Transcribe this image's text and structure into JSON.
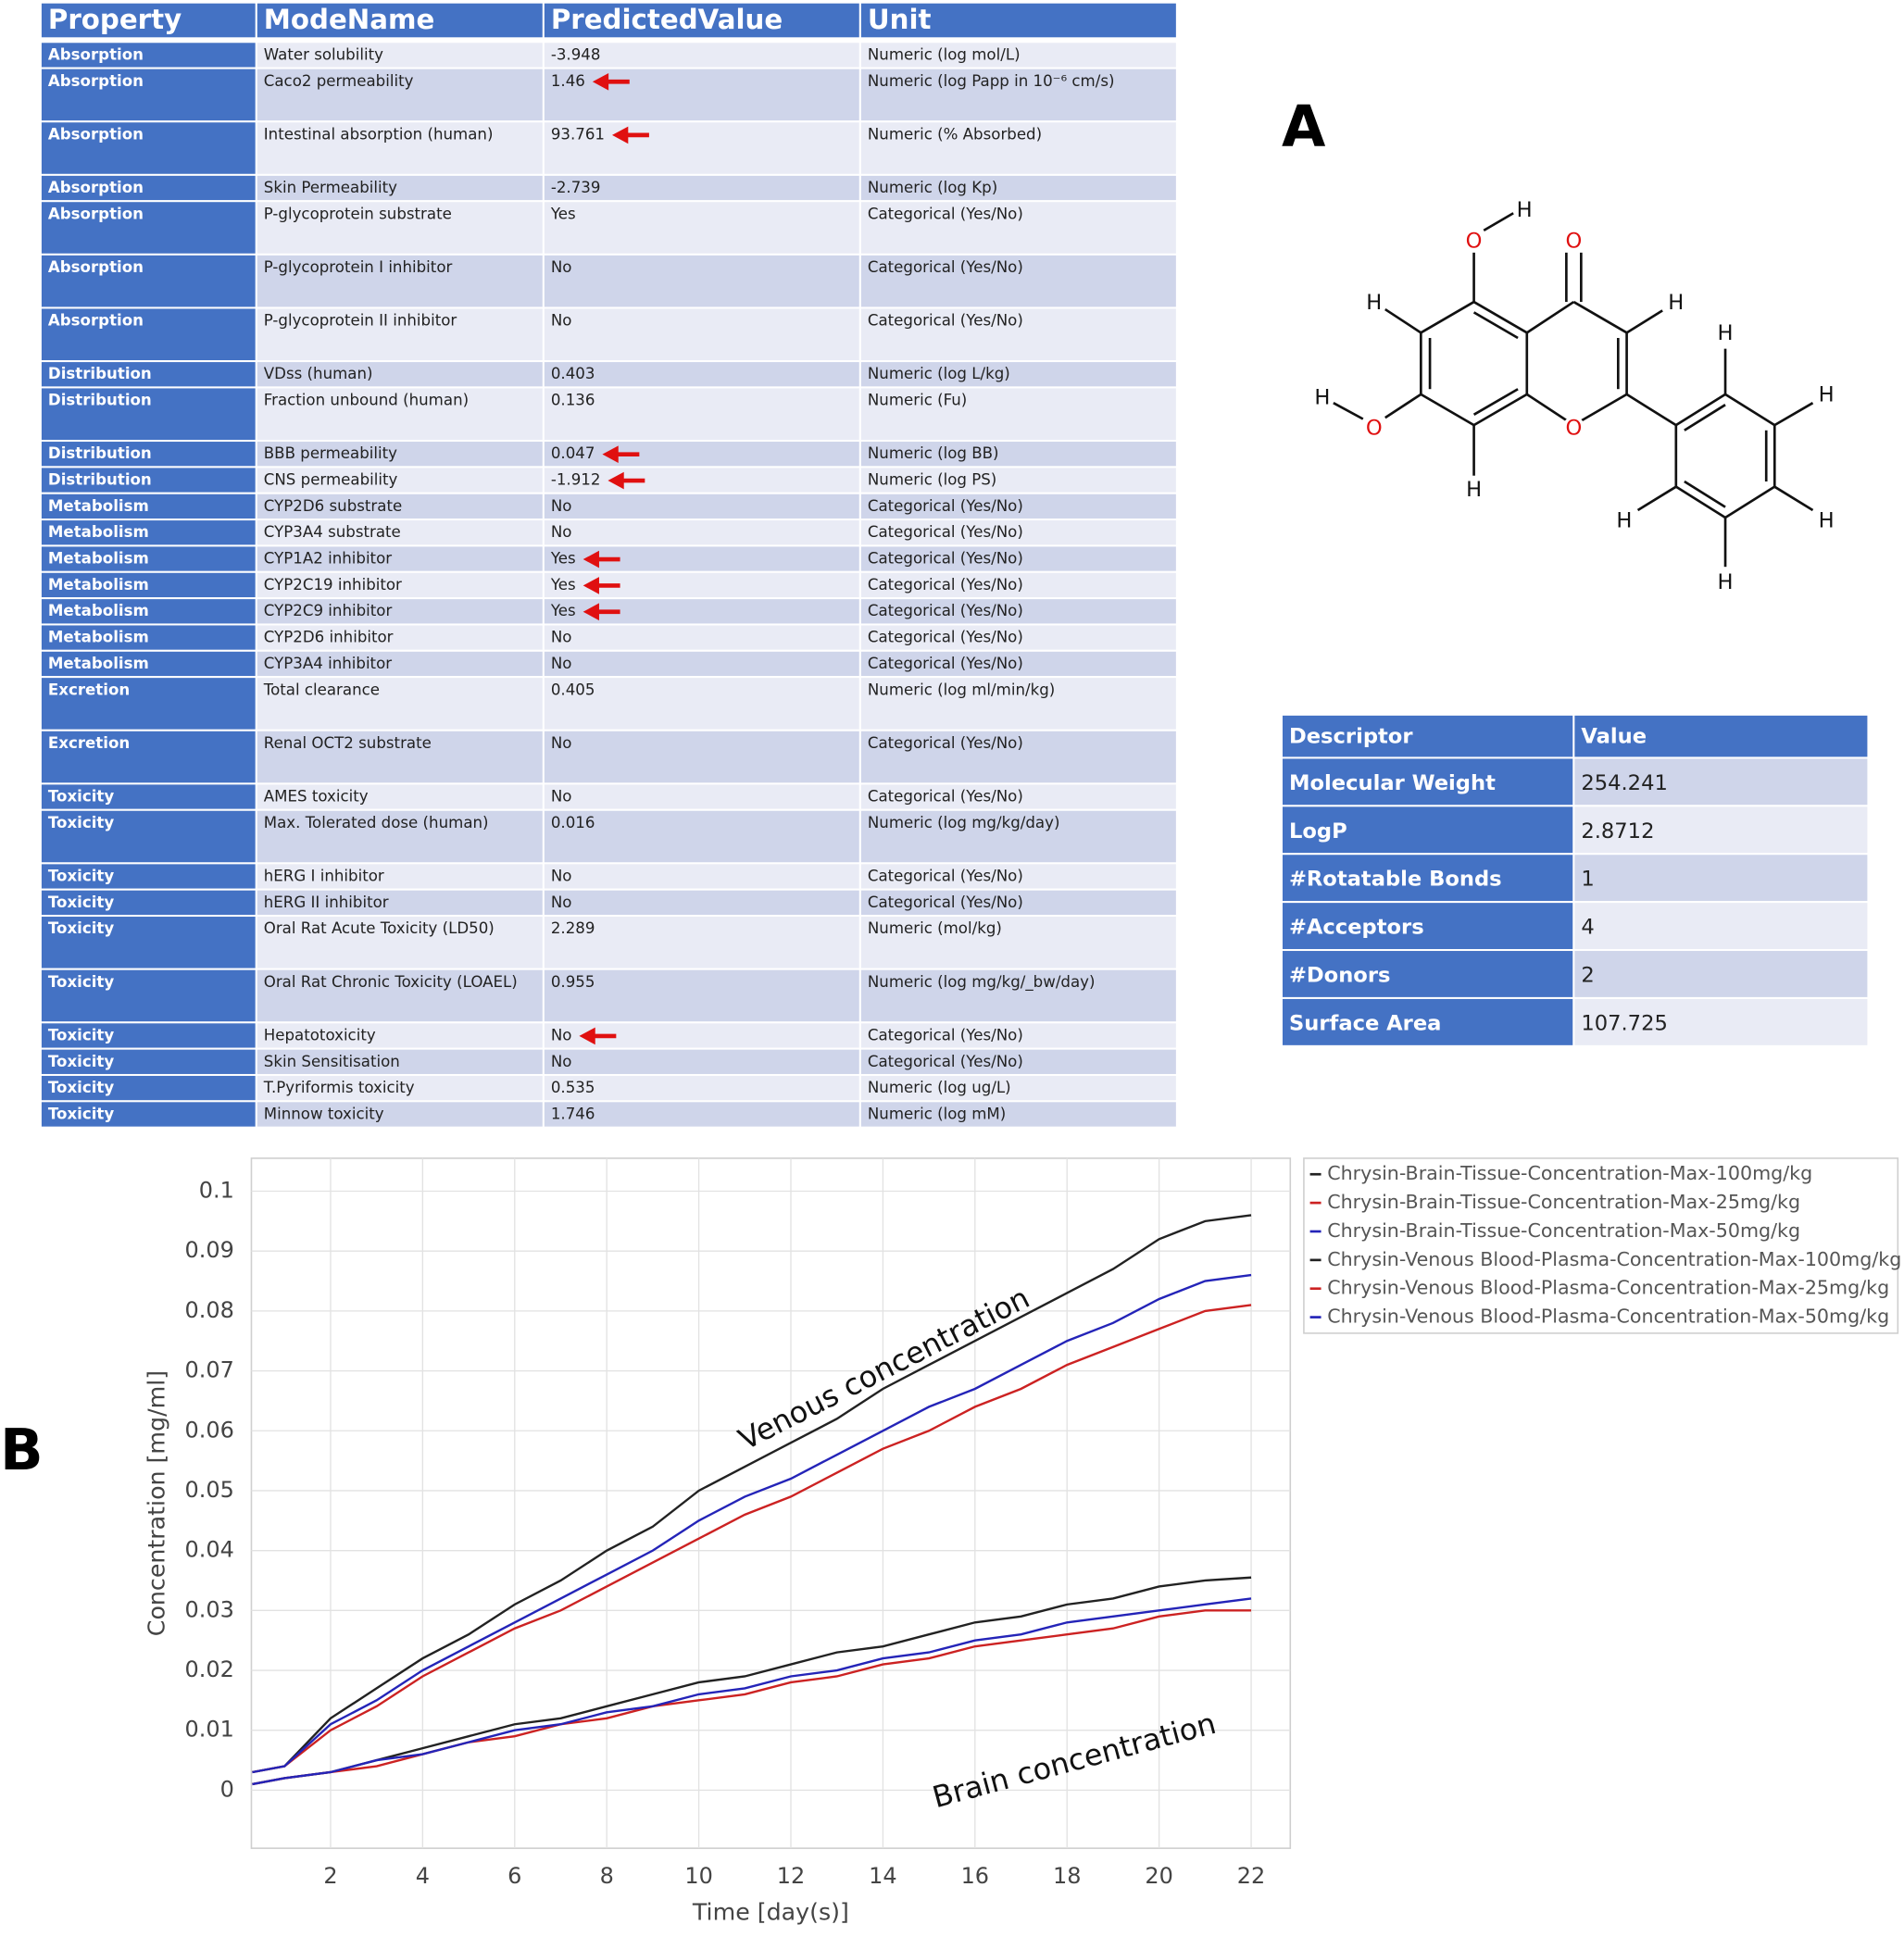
{
  "panel_labels": [
    "A",
    "B"
  ],
  "admet_table": {
    "columns": [
      "Property",
      "ModeName",
      "PredictedValue",
      "Unit"
    ],
    "rows": [
      [
        "Absorption",
        "Water solubility",
        "-3.948",
        "Numeric (log mol/L)"
      ],
      [
        "Absorption",
        "Caco2 permeability",
        "1.46",
        "Numeric (log Papp in 10⁻⁶ cm/s)"
      ],
      [
        "Absorption",
        "Intestinal absorption (human)",
        "93.761",
        "Numeric (% Absorbed)"
      ],
      [
        "Absorption",
        "Skin Permeability",
        "-2.739",
        "Numeric (log Kp)"
      ],
      [
        "Absorption",
        "P-glycoprotein substrate",
        "Yes",
        "Categorical (Yes/No)"
      ],
      [
        "Absorption",
        "P-glycoprotein I inhibitor",
        "No",
        "Categorical (Yes/No)"
      ],
      [
        "Absorption",
        "P-glycoprotein II inhibitor",
        "No",
        "Categorical (Yes/No)"
      ],
      [
        "Distribution",
        "VDss (human)",
        "0.403",
        "Numeric (log L/kg)"
      ],
      [
        "Distribution",
        "Fraction unbound (human)",
        "0.136",
        "Numeric (Fu)"
      ],
      [
        "Distribution",
        "BBB permeability",
        "0.047",
        "Numeric (log BB)"
      ],
      [
        "Distribution",
        "CNS permeability",
        "-1.912",
        "Numeric (log PS)"
      ],
      [
        "Metabolism",
        "CYP2D6 substrate",
        "No",
        "Categorical (Yes/No)"
      ],
      [
        "Metabolism",
        "CYP3A4 substrate",
        "No",
        "Categorical (Yes/No)"
      ],
      [
        "Metabolism",
        "CYP1A2 inhibitor",
        "Yes",
        "Categorical (Yes/No)"
      ],
      [
        "Metabolism",
        "CYP2C19 inhibitor",
        "Yes",
        "Categorical (Yes/No)"
      ],
      [
        "Metabolism",
        "CYP2C9 inhibitor",
        "Yes",
        "Categorical (Yes/No)"
      ],
      [
        "Metabolism",
        "CYP2D6 inhibitor",
        "No",
        "Categorical (Yes/No)"
      ],
      [
        "Metabolism",
        "CYP3A4 inhibitor",
        "No",
        "Categorical (Yes/No)"
      ],
      [
        "Excretion",
        "Total clearance",
        "0.405",
        "Numeric (log ml/min/kg)"
      ],
      [
        "Excretion",
        "Renal OCT2 substrate",
        "No",
        "Categorical (Yes/No)"
      ],
      [
        "Toxicity",
        "AMES toxicity",
        "No",
        "Categorical (Yes/No)"
      ],
      [
        "Toxicity",
        "Max. Tolerated dose (human)",
        "0.016",
        "Numeric (log mg/kg/day)"
      ],
      [
        "Toxicity",
        "hERG I inhibitor",
        "No",
        "Categorical (Yes/No)"
      ],
      [
        "Toxicity",
        "hERG II inhibitor",
        "No",
        "Categorical (Yes/No)"
      ],
      [
        "Toxicity",
        "Oral Rat Acute Toxicity (LD50)",
        "2.289",
        "Numeric (mol/kg)"
      ],
      [
        "Toxicity",
        "Oral Rat Chronic Toxicity (LOAEL)",
        "0.955",
        "Numeric (log mg/kg/_bw/day)"
      ],
      [
        "Toxicity",
        "Hepatotoxicity",
        "No",
        "Categorical (Yes/No)"
      ],
      [
        "Toxicity",
        "Skin Sensitisation",
        "No",
        "Categorical (Yes/No)"
      ],
      [
        "Toxicity",
        "T.Pyriformis toxicity",
        "0.535",
        "Numeric (log ug/L)"
      ],
      [
        "Toxicity",
        "Minnow toxicity",
        "1.746",
        "Numeric (log mM)"
      ]
    ]
  },
  "molecule": {
    "atoms": [
      "O",
      "H",
      "O",
      "H",
      "H",
      "O",
      "H",
      "O",
      "H",
      "H",
      "H",
      "H",
      "H",
      "H"
    ]
  },
  "descriptor_table": {
    "columns": [
      "Descriptor",
      "Value"
    ],
    "rows": [
      [
        "Molecular Weight",
        "254.241"
      ],
      [
        "LogP",
        "2.8712"
      ],
      [
        "#Rotatable Bonds",
        "1"
      ],
      [
        "#Acceptors",
        "4"
      ],
      [
        "#Donors",
        "2"
      ],
      [
        "Surface Area",
        "107.725"
      ]
    ]
  },
  "chart_data": {
    "type": "line",
    "x_label": "Time [day(s)]",
    "y_label": "Concentration [mg/ml]",
    "annotations": [
      "Venous concentration",
      "Brain concentration"
    ],
    "x": [
      0.3,
      1,
      2,
      3,
      4,
      5,
      6,
      7,
      8,
      9,
      10,
      11,
      12,
      13,
      14,
      15,
      16,
      17,
      18,
      19,
      20,
      21,
      22
    ],
    "series": [
      {
        "name": "Chrysin-Brain-Tissue-Concentration-Max-100mg/kg",
        "color": "#222222",
        "values": [
          0.001,
          0.002,
          0.003,
          0.005,
          0.007,
          0.009,
          0.011,
          0.012,
          0.014,
          0.016,
          0.018,
          0.019,
          0.021,
          0.023,
          0.024,
          0.026,
          0.028,
          0.029,
          0.031,
          0.032,
          0.034,
          0.035,
          0.0355
        ]
      },
      {
        "name": "Chrysin-Brain-Tissue-Concentration-Max-25mg/kg",
        "color": "#cc2222",
        "values": [
          0.001,
          0.002,
          0.003,
          0.004,
          0.006,
          0.008,
          0.009,
          0.011,
          0.012,
          0.014,
          0.015,
          0.016,
          0.018,
          0.019,
          0.021,
          0.022,
          0.024,
          0.025,
          0.026,
          0.027,
          0.029,
          0.03,
          0.03
        ]
      },
      {
        "name": "Chrysin-Brain-Tissue-Concentration-Max-50mg/kg",
        "color": "#2424b8",
        "values": [
          0.001,
          0.002,
          0.003,
          0.005,
          0.006,
          0.008,
          0.01,
          0.011,
          0.013,
          0.014,
          0.016,
          0.017,
          0.019,
          0.02,
          0.022,
          0.023,
          0.025,
          0.026,
          0.028,
          0.029,
          0.03,
          0.031,
          0.032
        ]
      },
      {
        "name": "Chrysin-Venous Blood-Plasma-Concentration-Max-100mg/kg",
        "color": "#222222",
        "values": [
          0.003,
          0.004,
          0.012,
          0.017,
          0.022,
          0.026,
          0.031,
          0.035,
          0.04,
          0.044,
          0.05,
          0.054,
          0.058,
          0.062,
          0.067,
          0.071,
          0.075,
          0.079,
          0.083,
          0.087,
          0.092,
          0.095,
          0.096
        ]
      },
      {
        "name": "Chrysin-Venous Blood-Plasma-Concentration-Max-25mg/kg",
        "color": "#cc2222",
        "values": [
          0.003,
          0.004,
          0.01,
          0.014,
          0.019,
          0.023,
          0.027,
          0.03,
          0.034,
          0.038,
          0.042,
          0.046,
          0.049,
          0.053,
          0.057,
          0.06,
          0.064,
          0.067,
          0.071,
          0.074,
          0.077,
          0.08,
          0.081
        ]
      },
      {
        "name": "Chrysin-Venous Blood-Plasma-Concentration-Max-50mg/kg",
        "color": "#2424b8",
        "values": [
          0.003,
          0.004,
          0.011,
          0.015,
          0.02,
          0.024,
          0.028,
          0.032,
          0.036,
          0.04,
          0.045,
          0.049,
          0.052,
          0.056,
          0.06,
          0.064,
          0.067,
          0.071,
          0.075,
          0.078,
          0.082,
          0.085,
          0.086
        ]
      }
    ],
    "xlim": [
      0.28,
      22.85
    ],
    "ylim": [
      -0.0097,
      0.1055
    ],
    "xticks": [
      2,
      4,
      6,
      8,
      10,
      12,
      14,
      16,
      18,
      20,
      22
    ],
    "yticks": [
      0,
      0.01,
      0.02,
      0.03,
      0.04,
      0.05,
      0.06,
      0.07,
      0.08,
      0.09,
      0.1
    ],
    "grid": true,
    "legend": "outside-right"
  }
}
